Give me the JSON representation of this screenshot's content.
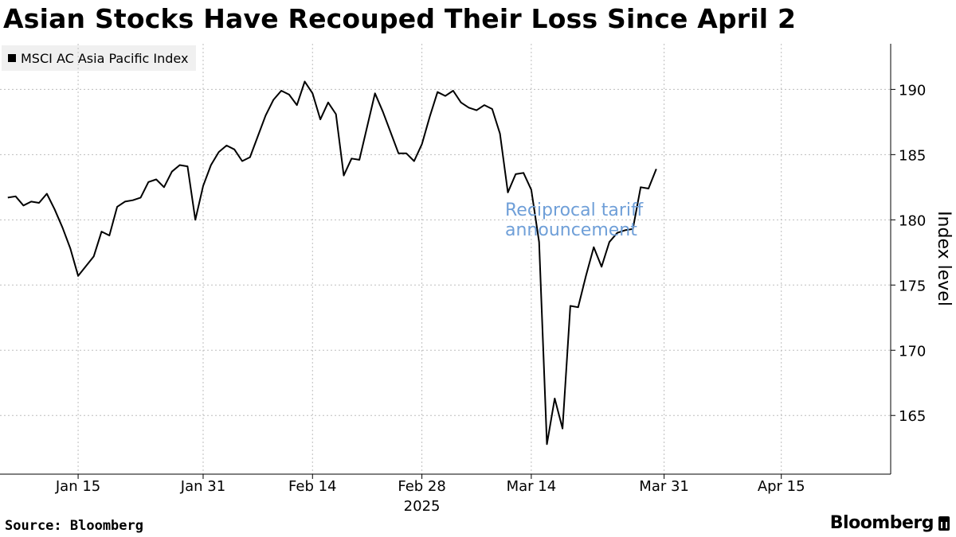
{
  "title": "Asian Stocks Have Recouped Their Loss Since April 2",
  "source": "Source: Bloomberg",
  "brand": "Bloomberg",
  "brand_icon": "bloomberg-terminal-icon",
  "colors": {
    "line": "#000000",
    "annotation": "#6f9fd8",
    "grid": "#bdbdbd",
    "legend_bg": "#f0f0f0"
  },
  "chart_data": {
    "type": "line",
    "title": "Asian Stocks Have Recouped Their Loss Since April 2",
    "xlabel": "2025",
    "ylabel": "Index level",
    "ylim": [
      160.5,
      193.5
    ],
    "y_ticks": [
      165,
      170,
      175,
      180,
      185,
      190
    ],
    "x_range": [
      "2025-01-05",
      "2025-04-29"
    ],
    "x_ticks": [
      {
        "date": "2025-01-15",
        "label": "Jan 15"
      },
      {
        "date": "2025-01-31",
        "label": "Jan 31"
      },
      {
        "date": "2025-02-14",
        "label": "Feb 14"
      },
      {
        "date": "2025-02-28",
        "label": "Feb 28"
      },
      {
        "date": "2025-03-14",
        "label": "Mar 14"
      },
      {
        "date": "2025-03-31",
        "label": "Mar 31"
      },
      {
        "date": "2025-04-15",
        "label": "Apr 15"
      }
    ],
    "year_label": "2025",
    "grid": true,
    "legend_position": "top-left",
    "annotation": {
      "lines": [
        "Reciprocal tariff",
        "announcement"
      ],
      "date": "2025-04-02",
      "value": 183.5
    },
    "series": [
      {
        "name": "MSCI AC Asia Pacific Index",
        "points": [
          [
            "2025-01-06",
            181.7
          ],
          [
            "2025-01-07",
            181.8
          ],
          [
            "2025-01-08",
            181.1
          ],
          [
            "2025-01-09",
            181.4
          ],
          [
            "2025-01-10",
            181.3
          ],
          [
            "2025-01-11",
            182.0
          ],
          [
            "2025-01-12",
            180.8
          ],
          [
            "2025-01-13",
            179.4
          ],
          [
            "2025-01-14",
            177.8
          ],
          [
            "2025-01-15",
            175.7
          ],
          [
            "2025-01-17",
            177.2
          ],
          [
            "2025-01-18",
            179.1
          ],
          [
            "2025-01-19",
            178.8
          ],
          [
            "2025-01-20",
            181.0
          ],
          [
            "2025-01-21",
            181.4
          ],
          [
            "2025-01-22",
            181.5
          ],
          [
            "2025-01-23",
            181.7
          ],
          [
            "2025-01-24",
            182.9
          ],
          [
            "2025-01-25",
            183.1
          ],
          [
            "2025-01-26",
            182.5
          ],
          [
            "2025-01-27",
            183.7
          ],
          [
            "2025-01-28",
            184.2
          ],
          [
            "2025-01-29",
            184.1
          ],
          [
            "2025-01-30",
            180.0
          ],
          [
            "2025-01-31",
            182.6
          ],
          [
            "2025-02-01",
            184.2
          ],
          [
            "2025-02-02",
            185.2
          ],
          [
            "2025-02-03",
            185.7
          ],
          [
            "2025-02-04",
            185.4
          ],
          [
            "2025-02-05",
            184.5
          ],
          [
            "2025-02-06",
            184.8
          ],
          [
            "2025-02-07",
            186.4
          ],
          [
            "2025-02-08",
            188.0
          ],
          [
            "2025-02-09",
            189.2
          ],
          [
            "2025-02-10",
            189.9
          ],
          [
            "2025-02-11",
            189.6
          ],
          [
            "2025-02-12",
            188.8
          ],
          [
            "2025-02-13",
            190.6
          ],
          [
            "2025-02-14",
            189.7
          ],
          [
            "2025-02-15",
            187.7
          ],
          [
            "2025-02-16",
            189.0
          ],
          [
            "2025-02-17",
            188.1
          ],
          [
            "2025-02-18",
            183.4
          ],
          [
            "2025-02-19",
            184.7
          ],
          [
            "2025-02-20",
            184.6
          ],
          [
            "2025-02-22",
            189.7
          ],
          [
            "2025-02-23",
            188.3
          ],
          [
            "2025-02-24",
            186.7
          ],
          [
            "2025-02-25",
            185.1
          ],
          [
            "2025-02-26",
            185.1
          ],
          [
            "2025-02-27",
            184.5
          ],
          [
            "2025-02-28",
            185.8
          ],
          [
            "2025-03-01",
            187.9
          ],
          [
            "2025-03-02",
            189.8
          ],
          [
            "2025-03-03",
            189.5
          ],
          [
            "2025-03-04",
            189.9
          ],
          [
            "2025-03-05",
            189.0
          ],
          [
            "2025-03-06",
            188.6
          ],
          [
            "2025-03-07",
            188.4
          ],
          [
            "2025-03-08",
            188.8
          ],
          [
            "2025-03-09",
            188.5
          ],
          [
            "2025-03-10",
            186.6
          ],
          [
            "2025-03-11",
            182.1
          ],
          [
            "2025-03-12",
            183.5
          ],
          [
            "2025-03-13",
            183.6
          ],
          [
            "2025-03-14",
            182.3
          ],
          [
            "2025-03-15",
            178.3
          ],
          [
            "2025-03-16",
            162.8
          ],
          [
            "2025-03-17",
            166.3
          ],
          [
            "2025-03-18",
            164.0
          ],
          [
            "2025-03-19",
            173.4
          ],
          [
            "2025-03-20",
            173.3
          ],
          [
            "2025-03-21",
            175.7
          ],
          [
            "2025-03-22",
            177.9
          ],
          [
            "2025-03-23",
            176.4
          ],
          [
            "2025-03-24",
            178.3
          ],
          [
            "2025-03-25",
            179.0
          ],
          [
            "2025-03-26",
            179.2
          ],
          [
            "2025-03-27",
            179.3
          ],
          [
            "2025-03-28",
            182.5
          ],
          [
            "2025-03-29",
            182.4
          ],
          [
            "2025-03-30",
            183.9
          ]
        ]
      }
    ]
  }
}
